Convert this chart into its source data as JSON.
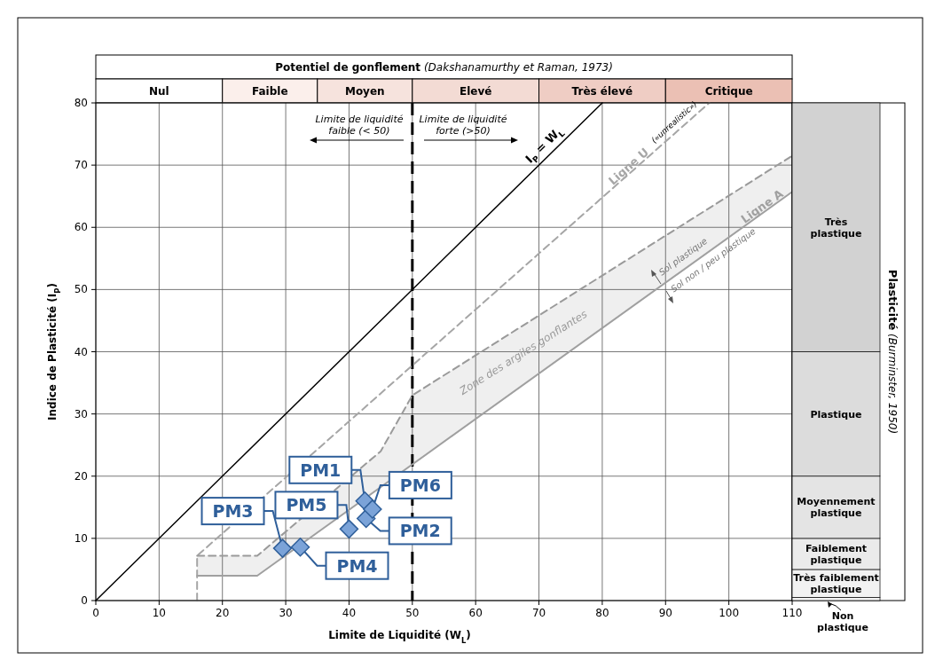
{
  "chart_data": [
    {
      "type": "bar",
      "orientation": "horizontal",
      "stacked": true,
      "title": "Potentiel de gonflement",
      "subtitle": "(Dakshanamurthy et Raman, 1973)",
      "categories": [
        null
      ],
      "xlim": [
        0,
        110
      ],
      "tick_labels": false,
      "series": [
        {
          "name": "Nul",
          "color": "#ffffff",
          "values": [
            20
          ]
        },
        {
          "name": "Faible",
          "color": "#fbefeb",
          "values": [
            15
          ]
        },
        {
          "name": "Moyen",
          "color": "#f6e3dd",
          "values": [
            15
          ]
        },
        {
          "name": "Elevé",
          "color": "#f3dbd4",
          "values": [
            20
          ]
        },
        {
          "name": "Très élevé",
          "color": "#efcdc4",
          "values": [
            20
          ]
        },
        {
          "name": "Critique",
          "color": "#ebc0b4",
          "values": [
            20
          ]
        }
      ]
    },
    {
      "type": "scatter",
      "xlabel": "Limite de Liquidité (W$_{L}$)",
      "ylabel": "Indice de Plasticité (I$_{P}$)",
      "xlim": [
        0,
        110
      ],
      "ylim": [
        0,
        80
      ],
      "xticks": [
        0,
        10,
        20,
        30,
        40,
        50,
        60,
        70,
        80,
        90,
        100,
        110
      ],
      "yticks": [
        0,
        10,
        20,
        30,
        40,
        50,
        60,
        70,
        80
      ],
      "grid": true,
      "series": [
        {
          "name": "I$_{P}$ = W$_{L}$",
          "type": "line",
          "color": "#000000",
          "line_style": "solid",
          "x": [
            0,
            80
          ],
          "values": [
            0,
            80
          ]
        },
        {
          "name": "Ligne U",
          "type": "line",
          "color": "#a6a6a6",
          "line_style": "dashed",
          "x": [
            16,
            16,
            96.9
          ],
          "values": [
            0,
            7.2,
            80
          ]
        },
        {
          "name": "Zone des argiles gonflantes",
          "type": "line",
          "color": "#9a9a9a",
          "line_style": "dashed",
          "x": [
            16,
            25.5,
            45,
            50,
            110
          ],
          "values": [
            7.2,
            7.2,
            24,
            33,
            71.5
          ],
          "lower": [
            4,
            4,
            18.3,
            21.9,
            65.7
          ],
          "upper": [
            7.2,
            7.2,
            24,
            33,
            71.5
          ]
        },
        {
          "name": "Ligne A",
          "type": "line",
          "color": "#a0a0a0",
          "line_style": "solid",
          "x": [
            16,
            25.5,
            110
          ],
          "values": [
            4,
            4,
            65.7
          ]
        },
        {
          "color": "#7ba3d8",
          "marker": "diamond",
          "x": [
            42.5,
            42.7,
            29.5,
            32.3,
            40.0,
            43.7
          ],
          "values": [
            16.0,
            13.2,
            8.4,
            8.6,
            11.5,
            14.7
          ]
        }
      ],
      "ref_lines": [
        {
          "axis": "x",
          "value": 50,
          "line_style": "dashed",
          "color": "#000000"
        }
      ],
      "annotations": [
        "Limite de liquidité faible (< 50)",
        "Limite de liquidité forte (>50)",
        "(«unrealistic»)",
        "Sol plastique",
        "Sol non / peu plastique",
        {
          "text": "PM1",
          "x": 42.5,
          "y": 16.0
        },
        {
          "text": "PM2",
          "x": 42.7,
          "y": 13.2
        },
        {
          "text": "PM3",
          "x": 29.5,
          "y": 8.4
        },
        {
          "text": "PM4",
          "x": 32.3,
          "y": 8.6
        },
        {
          "text": "PM5",
          "x": 40.0,
          "y": 11.5
        },
        {
          "text": "PM6",
          "x": 43.7,
          "y": 14.7
        }
      ]
    },
    {
      "type": "bar",
      "stacked": true,
      "ylabel": "Plasticité (Burminster, 1950)",
      "categories": [
        null
      ],
      "ylim": [
        0,
        80
      ],
      "tick_labels": false,
      "series": [
        {
          "name": "Non plastique",
          "color": "#f2f2f2",
          "values": [
            0.5
          ]
        },
        {
          "name": "Très faiblement plastique",
          "color": "#f2f2f2",
          "values": [
            4.5
          ]
        },
        {
          "name": "Faiblement plastique",
          "color": "#ebebeb",
          "values": [
            5
          ]
        },
        {
          "name": "Moyennement plastique",
          "color": "#e4e4e4",
          "values": [
            10
          ]
        },
        {
          "name": "Plastique",
          "color": "#dcdcdc",
          "values": [
            20
          ]
        },
        {
          "name": "Très plastique",
          "color": "#d2d2d2",
          "values": [
            40
          ]
        }
      ]
    }
  ]
}
